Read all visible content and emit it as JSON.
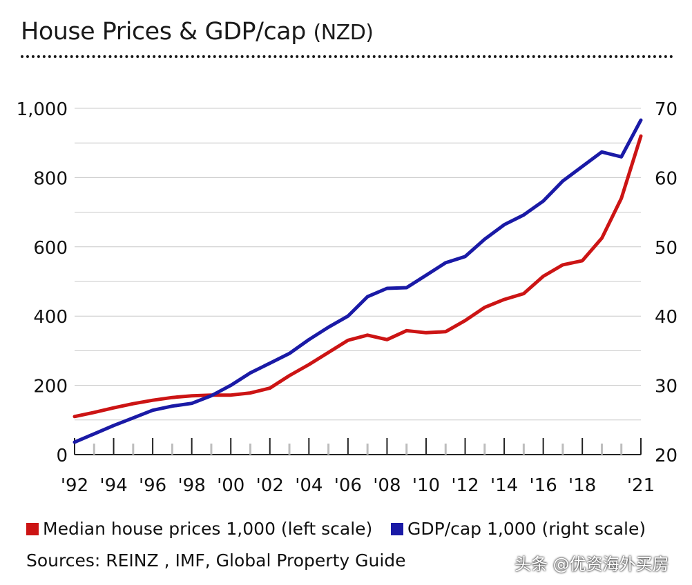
{
  "title": {
    "main": "House Prices & GDP/cap",
    "unit": "(NZD)"
  },
  "chart_data": {
    "type": "line",
    "x_labels": [
      "'92",
      "'94",
      "'96",
      "'98",
      "'00",
      "'02",
      "'04",
      "'06",
      "'08",
      "'10",
      "'12",
      "'14",
      "'16",
      "'18",
      "'21"
    ],
    "x": [
      1992,
      1993,
      1994,
      1995,
      1996,
      1997,
      1998,
      1999,
      2000,
      2001,
      2002,
      2003,
      2004,
      2005,
      2006,
      2007,
      2008,
      2009,
      2010,
      2011,
      2012,
      2013,
      2014,
      2015,
      2016,
      2017,
      2018,
      2019,
      2020,
      2021
    ],
    "xlim": [
      1992,
      2021
    ],
    "series": [
      {
        "name": "Median house prices 1,000 (left scale)",
        "axis": "left",
        "color": "#cc1414",
        "values": [
          110,
          122,
          135,
          147,
          157,
          165,
          170,
          172,
          172,
          178,
          192,
          228,
          260,
          295,
          330,
          345,
          332,
          358,
          352,
          355,
          387,
          425,
          448,
          465,
          515,
          548,
          560,
          625,
          740,
          920
        ]
      },
      {
        "name": "GDP/cap 1,000 (right scale)",
        "axis": "right",
        "color": "#1a1aa6",
        "values": [
          21.8,
          23.0,
          24.2,
          25.3,
          26.4,
          27.0,
          27.4,
          28.5,
          30.0,
          31.8,
          33.2,
          34.6,
          36.6,
          38.4,
          40.0,
          42.8,
          44.0,
          44.1,
          45.9,
          47.7,
          48.6,
          51.1,
          53.2,
          54.6,
          56.6,
          59.5,
          61.6,
          63.7,
          63.0,
          68.3
        ]
      }
    ],
    "left_axis": {
      "ticks": [
        "0",
        "200",
        "400",
        "600",
        "800",
        "1,000"
      ],
      "range": [
        0,
        1000
      ]
    },
    "right_axis": {
      "ticks": [
        "20",
        "30",
        "40",
        "50",
        "60",
        "70"
      ],
      "range": [
        20,
        70
      ]
    },
    "grid": true
  },
  "legend": [
    {
      "label": "Median house prices 1,000 (left scale)",
      "color": "#cc1414"
    },
    {
      "label": "GDP/cap 1,000 (right scale)",
      "color": "#1a1aa6"
    }
  ],
  "source": "Sources:  REINZ , IMF, Global Property Guide",
  "watermark": "头条 @优资海外买房"
}
